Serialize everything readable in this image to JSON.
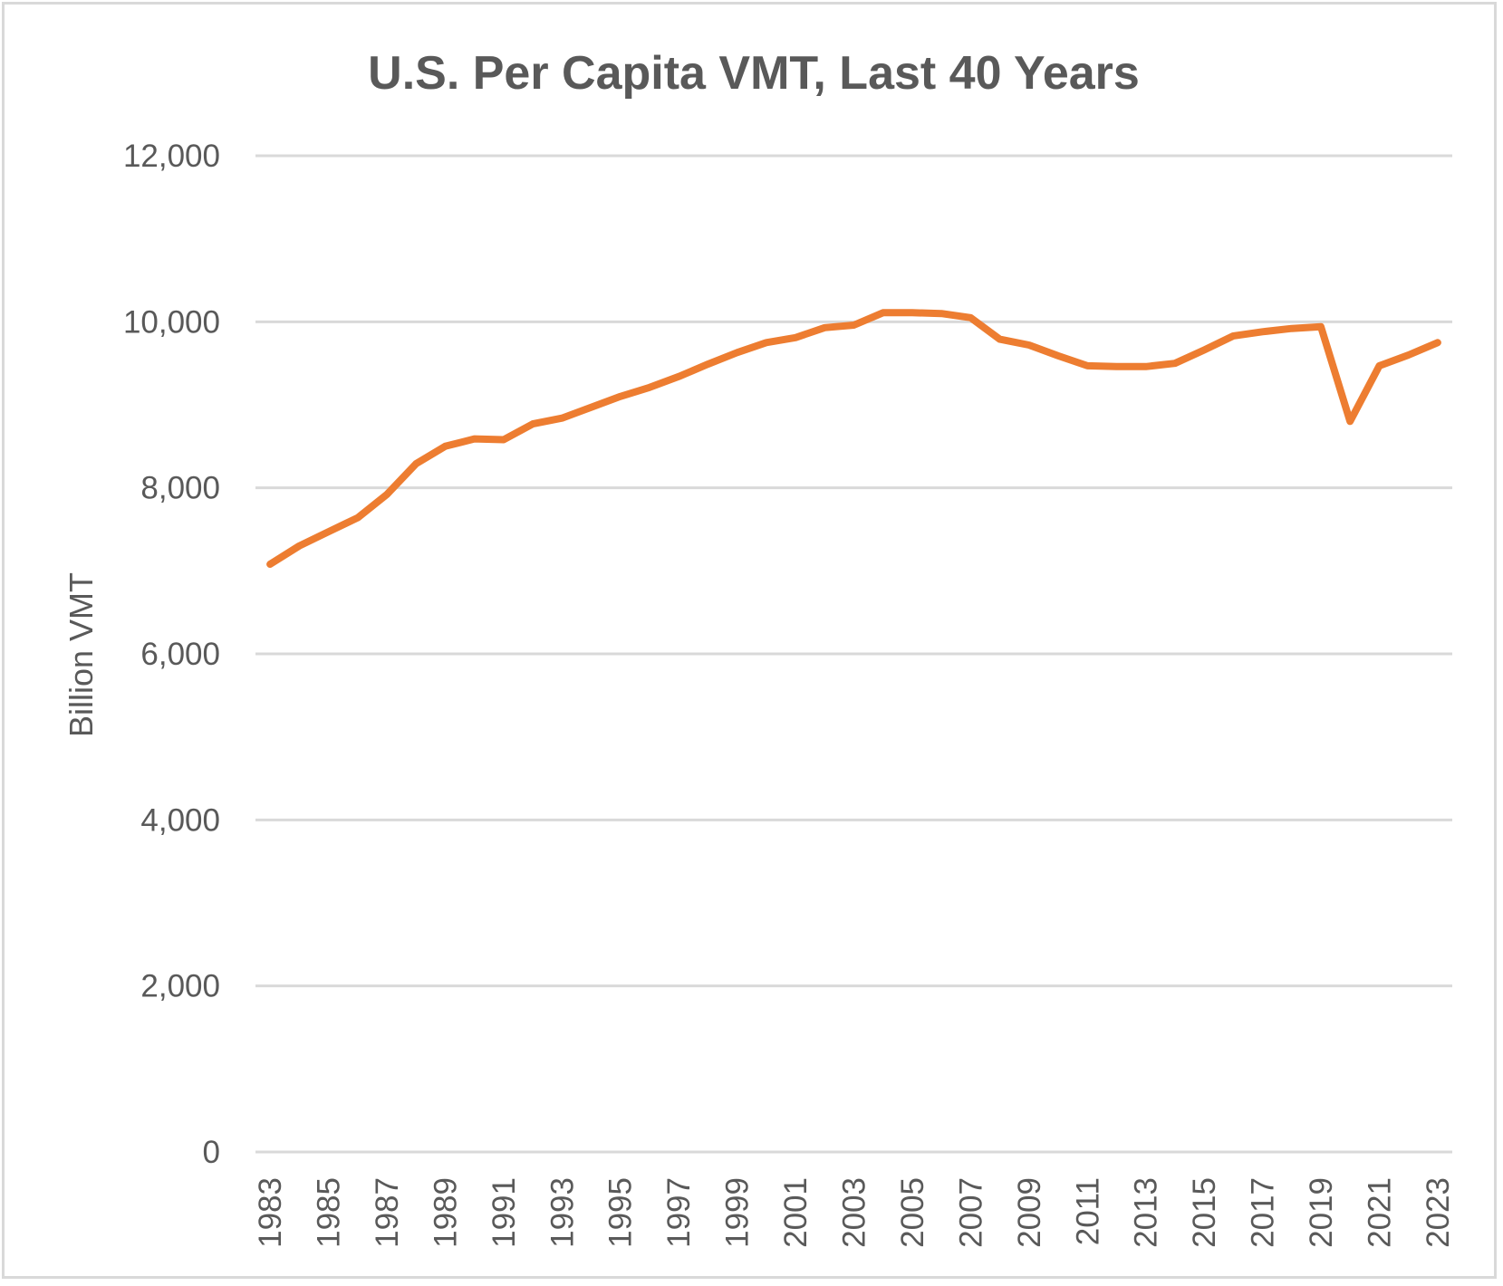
{
  "chart_data": {
    "type": "line",
    "title": "U.S. Per Capita VMT, Last 40 Years",
    "xlabel": "",
    "ylabel": "Billion VMT",
    "ylim": [
      0,
      12000
    ],
    "yticks": [
      0,
      2000,
      4000,
      6000,
      8000,
      10000,
      12000
    ],
    "ytick_labels": [
      "0",
      "2,000",
      "4,000",
      "6,000",
      "8,000",
      "10,000",
      "12,000"
    ],
    "grid": true,
    "legend": "none",
    "x": [
      1983,
      1984,
      1985,
      1986,
      1987,
      1988,
      1989,
      1990,
      1991,
      1992,
      1993,
      1994,
      1995,
      1996,
      1997,
      1998,
      1999,
      2000,
      2001,
      2002,
      2003,
      2004,
      2005,
      2006,
      2007,
      2008,
      2009,
      2010,
      2011,
      2012,
      2013,
      2014,
      2015,
      2016,
      2017,
      2018,
      2019,
      2020,
      2021,
      2022,
      2023
    ],
    "xtick_labels": [
      "1983",
      "1985",
      "1987",
      "1989",
      "1991",
      "1993",
      "1995",
      "1997",
      "1999",
      "2001",
      "2003",
      "2005",
      "2007",
      "2009",
      "2011",
      "2013",
      "2015",
      "2017",
      "2019",
      "2021",
      "2023"
    ],
    "series": [
      {
        "name": "Per Capita VMT",
        "color": "#ed7d31",
        "values": [
          7080,
          7300,
          7470,
          7640,
          7920,
          8290,
          8500,
          8590,
          8580,
          8770,
          8840,
          8970,
          9100,
          9210,
          9340,
          9490,
          9630,
          9750,
          9810,
          9930,
          9960,
          10110,
          10110,
          10100,
          10050,
          9790,
          9720,
          9590,
          9470,
          9460,
          9460,
          9500,
          9660,
          9830,
          9880,
          9920,
          9940,
          8800,
          9470,
          9600,
          9750
        ]
      }
    ]
  }
}
